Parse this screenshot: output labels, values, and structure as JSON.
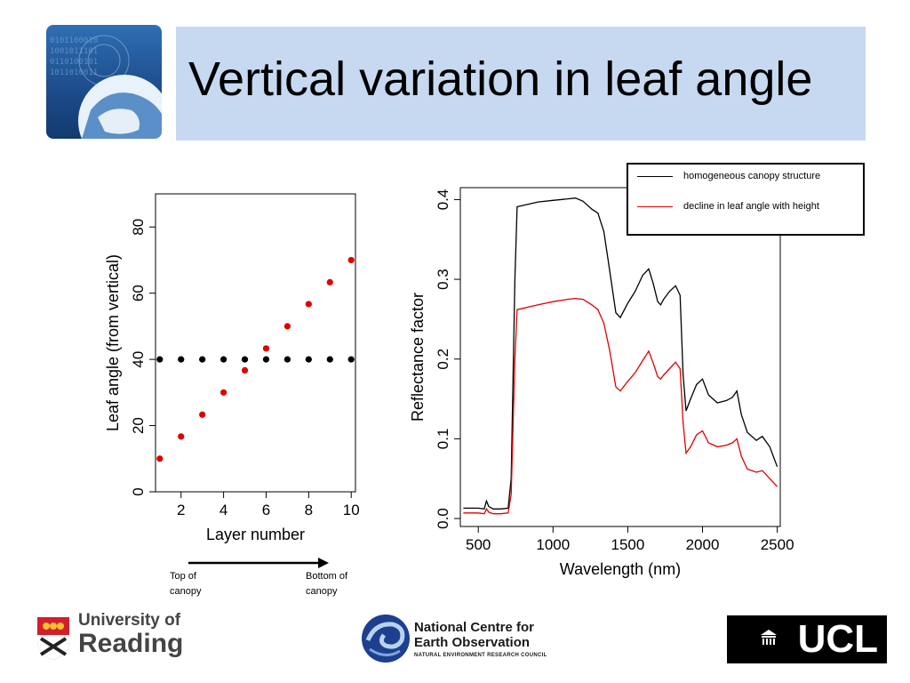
{
  "title": "Vertical variation in leaf angle",
  "chart_data": [
    {
      "type": "scatter",
      "xlabel": "Layer number",
      "ylabel": "Leaf angle (from vertical)",
      "xlim": [
        0.8,
        10.2
      ],
      "ylim": [
        0,
        90
      ],
      "xticks": [
        "2",
        "4",
        "6",
        "8",
        "10"
      ],
      "yticks": [
        "0",
        "20",
        "40",
        "60",
        "80"
      ],
      "series": [
        {
          "color": "#000000",
          "x": [
            1,
            2,
            3,
            4,
            5,
            6,
            7,
            8,
            9,
            10
          ],
          "y": [
            40,
            40,
            40,
            40,
            40,
            40,
            40,
            40,
            40,
            40
          ]
        },
        {
          "color": "#e00000",
          "x": [
            1,
            2,
            3,
            4,
            5,
            6,
            7,
            8,
            9,
            10
          ],
          "y": [
            10,
            16.7,
            23.3,
            30,
            36.7,
            43.3,
            50,
            56.7,
            63.3,
            70
          ]
        }
      ]
    },
    {
      "type": "line",
      "xlabel": "Wavelength (nm)",
      "ylabel": "Reflectance factor",
      "xlim": [
        380,
        2520
      ],
      "ylim": [
        -0.01,
        0.415
      ],
      "xticks": [
        "500",
        "1000",
        "1500",
        "2000",
        "2500"
      ],
      "yticks": [
        "0.0",
        "0.1",
        "0.2",
        "0.3",
        "0.4"
      ],
      "legend_position": "top-right",
      "series": [
        {
          "name": "homogeneous canopy structure",
          "color": "#000000",
          "x": [
            400,
            500,
            540,
            555,
            570,
            600,
            650,
            700,
            720,
            745,
            760,
            900,
            1000,
            1100,
            1150,
            1200,
            1260,
            1300,
            1340,
            1380,
            1420,
            1450,
            1500,
            1550,
            1600,
            1640,
            1670,
            1700,
            1720,
            1740,
            1780,
            1820,
            1850,
            1870,
            1890,
            1920,
            1960,
            2000,
            2040,
            2100,
            2160,
            2200,
            2230,
            2260,
            2300,
            2360,
            2400,
            2450,
            2500
          ],
          "y": [
            0.013,
            0.013,
            0.012,
            0.022,
            0.015,
            0.012,
            0.012,
            0.013,
            0.05,
            0.3,
            0.391,
            0.397,
            0.399,
            0.401,
            0.402,
            0.398,
            0.388,
            0.383,
            0.36,
            0.31,
            0.258,
            0.252,
            0.27,
            0.285,
            0.305,
            0.313,
            0.295,
            0.272,
            0.268,
            0.275,
            0.285,
            0.292,
            0.28,
            0.18,
            0.135,
            0.15,
            0.168,
            0.175,
            0.155,
            0.145,
            0.148,
            0.152,
            0.16,
            0.13,
            0.108,
            0.098,
            0.103,
            0.09,
            0.065
          ]
        },
        {
          "name": "decline in leaf angle with height",
          "color": "#e00000",
          "x": [
            400,
            500,
            540,
            555,
            570,
            600,
            650,
            700,
            720,
            745,
            760,
            900,
            1000,
            1100,
            1150,
            1200,
            1260,
            1300,
            1340,
            1380,
            1420,
            1450,
            1500,
            1550,
            1600,
            1640,
            1670,
            1700,
            1720,
            1740,
            1780,
            1820,
            1850,
            1870,
            1890,
            1920,
            1960,
            2000,
            2040,
            2100,
            2160,
            2200,
            2230,
            2260,
            2300,
            2360,
            2400,
            2450,
            2500
          ],
          "y": [
            0.007,
            0.007,
            0.006,
            0.012,
            0.008,
            0.006,
            0.006,
            0.007,
            0.03,
            0.2,
            0.262,
            0.268,
            0.272,
            0.275,
            0.276,
            0.275,
            0.268,
            0.262,
            0.245,
            0.21,
            0.165,
            0.16,
            0.172,
            0.183,
            0.198,
            0.21,
            0.195,
            0.178,
            0.175,
            0.18,
            0.188,
            0.196,
            0.188,
            0.12,
            0.082,
            0.09,
            0.105,
            0.11,
            0.095,
            0.09,
            0.092,
            0.095,
            0.1,
            0.078,
            0.062,
            0.058,
            0.06,
            0.05,
            0.04
          ]
        }
      ]
    }
  ],
  "captions": {
    "left": "Top of canopy",
    "right": "Bottom of canopy"
  },
  "footer": {
    "reading_line1": "University of",
    "reading_line2": "Reading",
    "ncoe_line1": "National Centre for",
    "ncoe_line2": "Earth Observation",
    "ncoe_line3": "NATURAL ENVIRONMENT RESEARCH COUNCIL",
    "ucl": "UCL"
  }
}
